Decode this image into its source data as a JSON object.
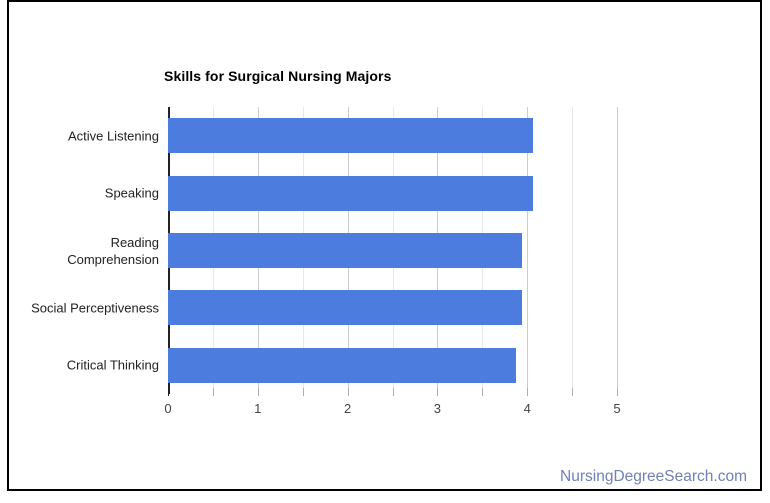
{
  "page": {
    "background": "#ffffff",
    "frame_border_color": "#000000",
    "watermark": {
      "text": "NursingDegreeSearch.com",
      "color": "#7081B5"
    }
  },
  "chart_data": {
    "type": "bar",
    "orientation": "horizontal",
    "title": "Skills for Surgical Nursing Majors",
    "categories": [
      "Active Listening",
      "Speaking",
      "Reading Comprehension",
      "Social Perceptiveness",
      "Critical Thinking"
    ],
    "values": [
      4.07,
      4.07,
      3.94,
      3.94,
      3.88
    ],
    "xlabel": "",
    "ylabel": "",
    "xlim": [
      0,
      5
    ],
    "x_ticks": [
      0,
      1,
      2,
      3,
      4,
      5
    ],
    "minor_tick_step": 0.5,
    "grid": true,
    "legend": "none",
    "colors": {
      "bar": "#4D7CDF",
      "title": "#000000",
      "category_label": "#222222",
      "axis_number": "#444444",
      "gridline_major": "#cccccc",
      "gridline_minor": "#e8e8e8",
      "baseline": "#222222",
      "tick": "#b0b0b0"
    }
  }
}
